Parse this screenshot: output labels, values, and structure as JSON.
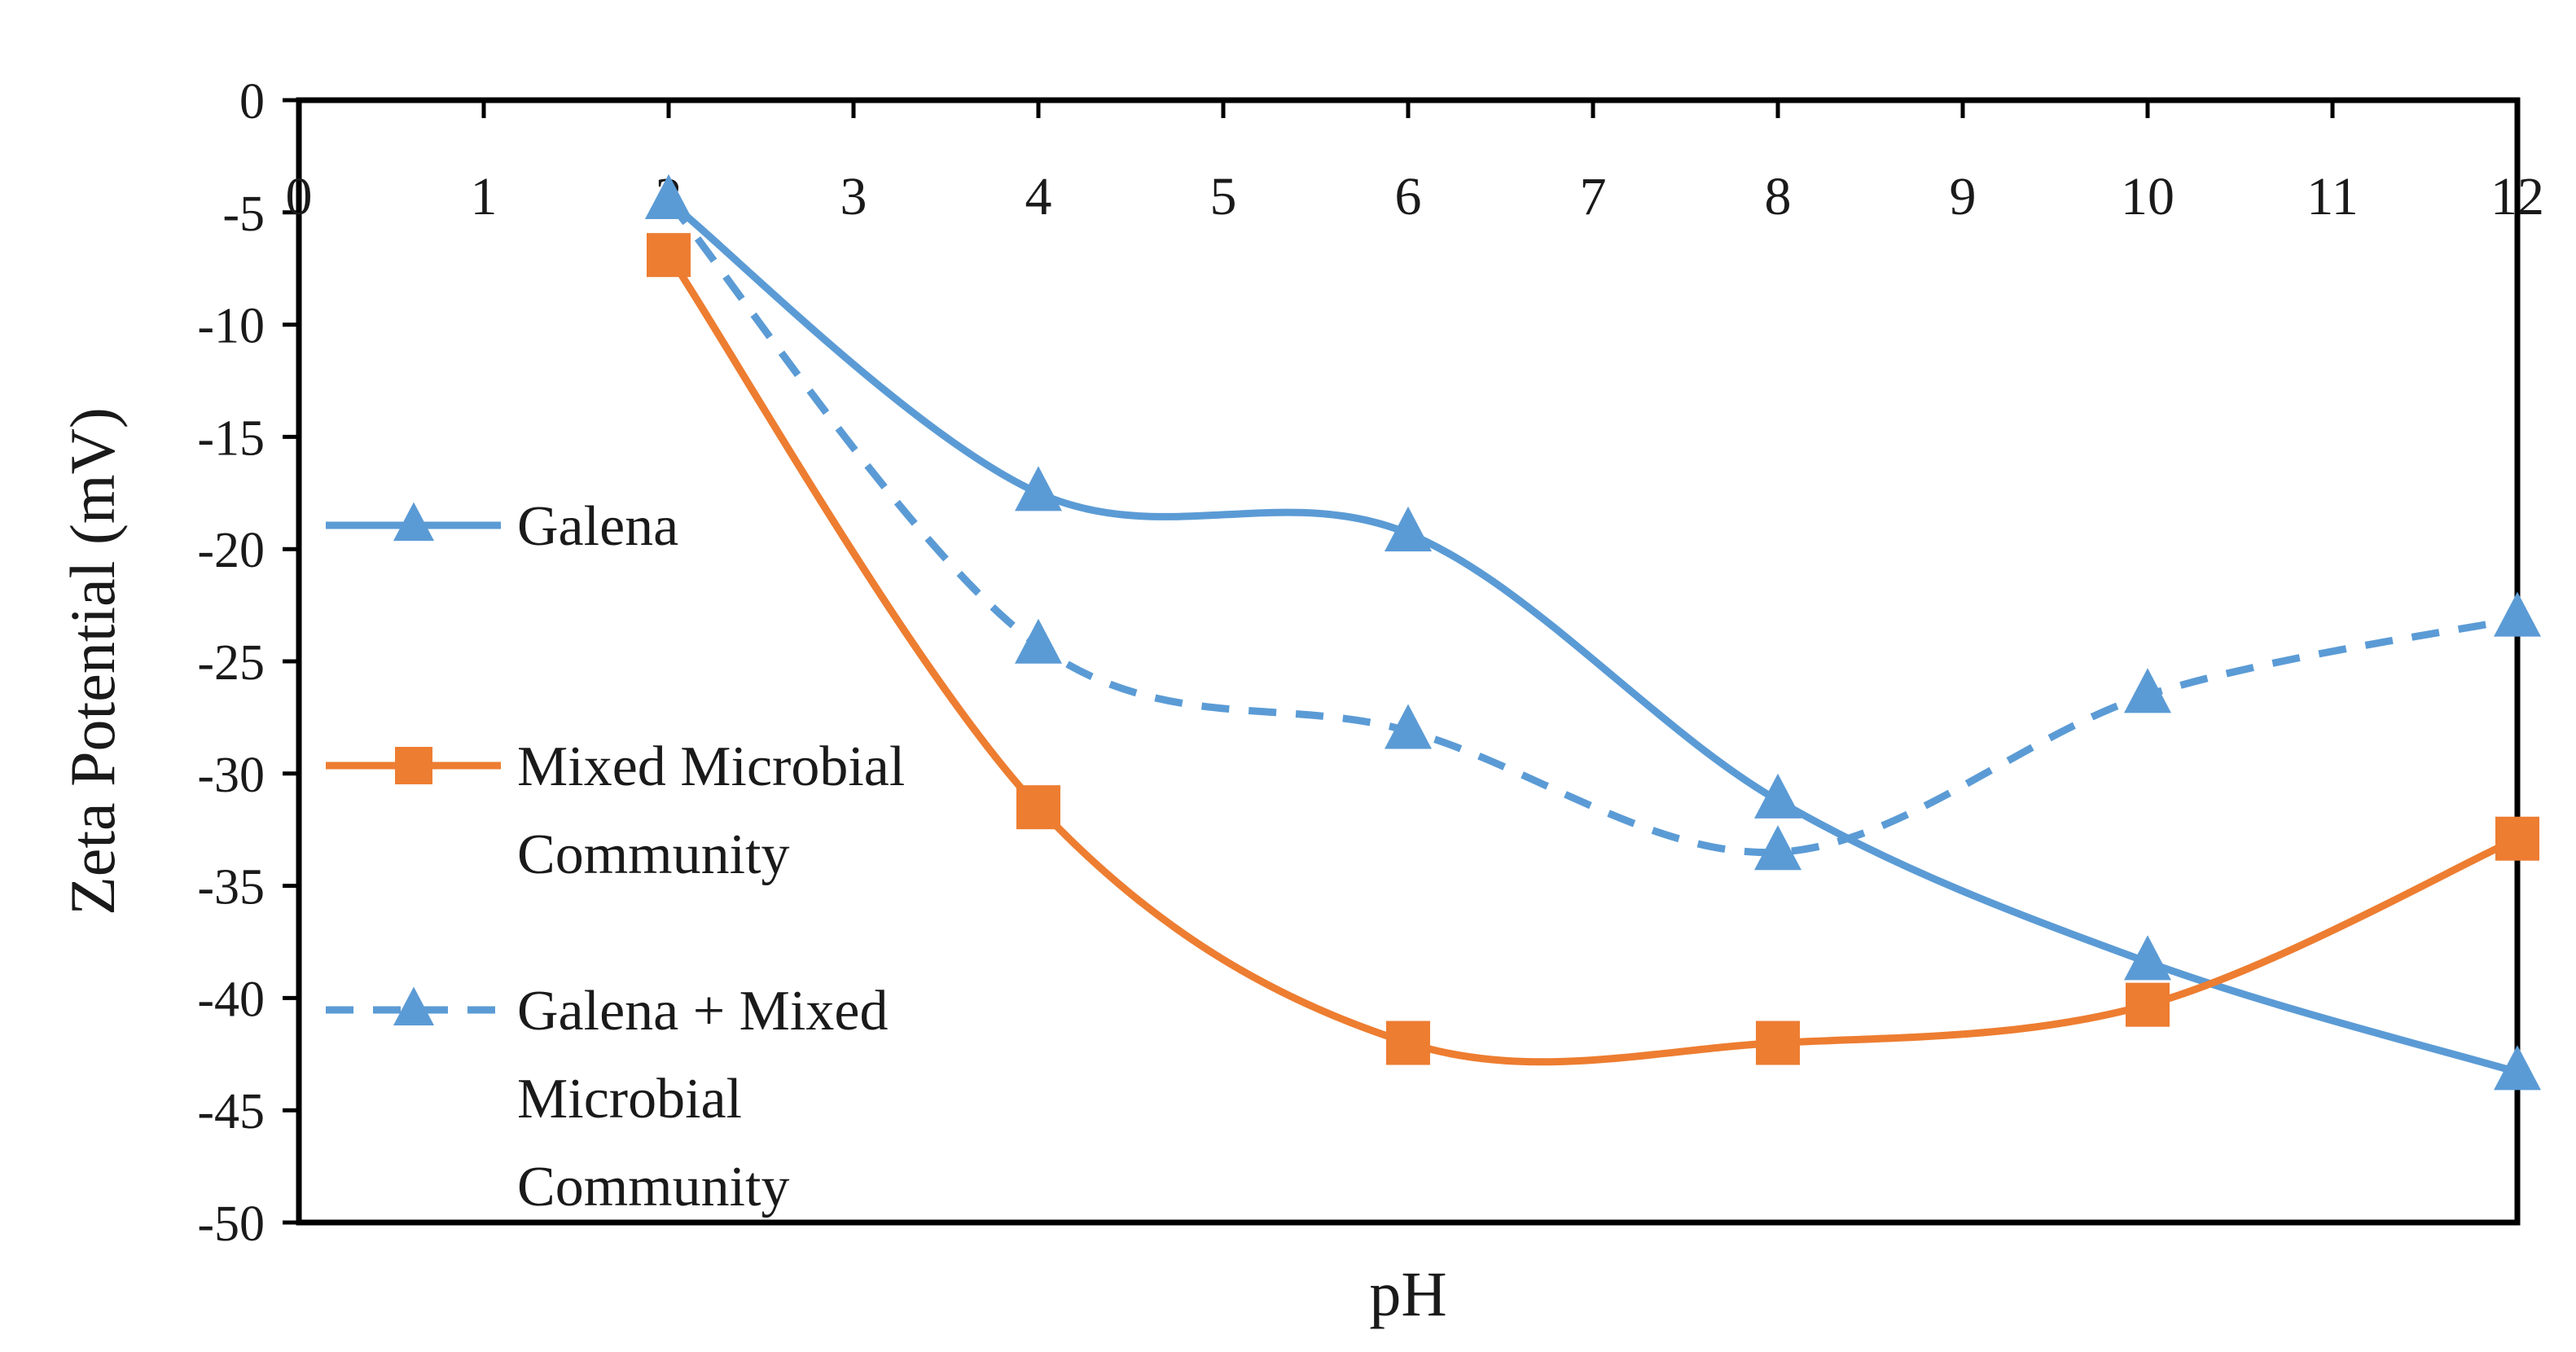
{
  "chart_data": {
    "type": "line",
    "title": "",
    "xlabel": "pH",
    "ylabel": "Zeta Potential (mV)",
    "xlim": [
      0,
      12
    ],
    "ylim": [
      -50,
      0
    ],
    "x_ticks": [
      "0",
      "1",
      "2",
      "3",
      "4",
      "5",
      "6",
      "7",
      "8",
      "9",
      "10",
      "11",
      "12"
    ],
    "y_ticks": [
      "0",
      "-5",
      "-10",
      "-15",
      "-20",
      "-25",
      "-30",
      "-35",
      "-40",
      "-45",
      "-50"
    ],
    "grid": false,
    "smooth": true,
    "legend_position": "left",
    "series": [
      {
        "name": "Galena",
        "legend_lines": [
          "Galena"
        ],
        "color": "#5b9bd5",
        "line_style": "solid",
        "marker": "triangle",
        "x": [
          2,
          4,
          6,
          8,
          10,
          12
        ],
        "y": [
          -4.5,
          -17.5,
          -19.3,
          -31.2,
          -38.4,
          -43.3
        ]
      },
      {
        "name": "Mixed Microbial Community",
        "legend_lines": [
          "Mixed Microbial",
          "Community"
        ],
        "color": "#ed7d31",
        "line_style": "solid",
        "marker": "square",
        "x": [
          2,
          4,
          6,
          8,
          10,
          12
        ],
        "y": [
          -6.9,
          -31.5,
          -42.0,
          -42.0,
          -40.3,
          -32.9
        ]
      },
      {
        "name": "Galena + Mixed Microbial Community",
        "legend_lines": [
          "Galena + Mixed",
          "Microbial",
          "Community"
        ],
        "color": "#5b9bd5",
        "line_style": "dashed",
        "marker": "triangle",
        "x": [
          2,
          4,
          6,
          8,
          10,
          12
        ],
        "y": [
          -4.5,
          -24.3,
          -28.1,
          -33.5,
          -26.5,
          -23.1
        ]
      }
    ]
  }
}
